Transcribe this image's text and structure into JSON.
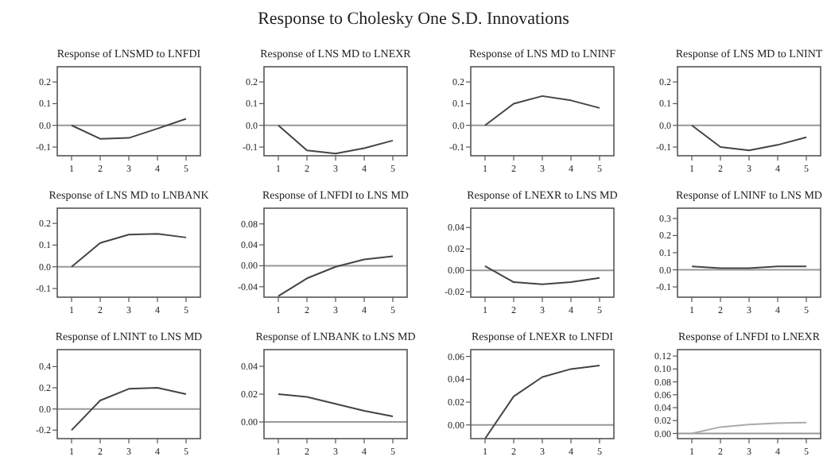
{
  "chart_data": [
    {
      "type": "line",
      "title": "Response of LNSMD to LNFDI",
      "annotations": [
        "Response to Cholesky One S.D. Innovations"
      ],
      "x": [
        1,
        2,
        3,
        4,
        5
      ],
      "xlim": [
        0.5,
        5.5
      ],
      "xticks": [
        1,
        2,
        3,
        4,
        5
      ],
      "ylim": [
        -0.14,
        0.27
      ],
      "yticks": [
        {
          "value": -0.1,
          "label": "-0.1"
        },
        {
          "value": 0,
          "label": "0.0"
        },
        {
          "value": 0.1,
          "label": "0.1"
        },
        {
          "value": 0.2,
          "label": "0.2"
        }
      ],
      "ref_lines": [
        {
          "axis": "y",
          "value": 0,
          "color": "#999999"
        }
      ],
      "series": [
        {
          "color": "#444444",
          "values": [
            0,
            -0.062,
            -0.058,
            -0.015,
            0.03
          ]
        }
      ]
    },
    {
      "type": "line",
      "title": "Response of LNS MD to LNEXR",
      "x": [
        1,
        2,
        3,
        4,
        5
      ],
      "xlim": [
        0.5,
        5.5
      ],
      "xticks": [
        1,
        2,
        3,
        4,
        5
      ],
      "ylim": [
        -0.14,
        0.27
      ],
      "yticks": [
        {
          "value": -0.1,
          "label": "-0.1"
        },
        {
          "value": 0,
          "label": "0.0"
        },
        {
          "value": 0.1,
          "label": "0.1"
        },
        {
          "value": 0.2,
          "label": "0.2"
        }
      ],
      "ref_lines": [
        {
          "axis": "y",
          "value": 0,
          "color": "#999999"
        }
      ],
      "series": [
        {
          "color": "#444444",
          "values": [
            0,
            -0.115,
            -0.13,
            -0.105,
            -0.07
          ]
        }
      ]
    },
    {
      "type": "line",
      "title": "Response of LNS MD  to LNINF",
      "x": [
        1,
        2,
        3,
        4,
        5
      ],
      "xlim": [
        0.5,
        5.5
      ],
      "xticks": [
        1,
        2,
        3,
        4,
        5
      ],
      "ylim": [
        -0.14,
        0.27
      ],
      "yticks": [
        {
          "value": -0.1,
          "label": "-0.1"
        },
        {
          "value": 0,
          "label": "0.0"
        },
        {
          "value": 0.1,
          "label": "0.1"
        },
        {
          "value": 0.2,
          "label": "0.2"
        }
      ],
      "ref_lines": [
        {
          "axis": "y",
          "value": 0,
          "color": "#999999"
        }
      ],
      "series": [
        {
          "color": "#444444",
          "values": [
            0,
            0.1,
            0.135,
            0.115,
            0.08
          ]
        }
      ]
    },
    {
      "type": "line",
      "title": "Response of LNS MD to LNINT",
      "x": [
        1,
        2,
        3,
        4,
        5
      ],
      "xlim": [
        0.5,
        5.5
      ],
      "xticks": [
        1,
        2,
        3,
        4,
        5
      ],
      "ylim": [
        -0.14,
        0.27
      ],
      "yticks": [
        {
          "value": -0.1,
          "label": "-0.1"
        },
        {
          "value": 0,
          "label": "0.0"
        },
        {
          "value": 0.1,
          "label": "0.1"
        },
        {
          "value": 0.2,
          "label": "0.2"
        }
      ],
      "ref_lines": [
        {
          "axis": "y",
          "value": 0,
          "color": "#999999"
        }
      ],
      "series": [
        {
          "color": "#444444",
          "values": [
            0,
            -0.1,
            -0.115,
            -0.09,
            -0.055
          ]
        }
      ]
    },
    {
      "type": "line",
      "title": "Response of LNS MD to LNBANK",
      "x": [
        1,
        2,
        3,
        4,
        5
      ],
      "xlim": [
        0.5,
        5.5
      ],
      "xticks": [
        1,
        2,
        3,
        4,
        5
      ],
      "ylim": [
        -0.14,
        0.27
      ],
      "yticks": [
        {
          "value": -0.1,
          "label": "-0.1"
        },
        {
          "value": 0,
          "label": "0.0"
        },
        {
          "value": 0.1,
          "label": "0.1"
        },
        {
          "value": 0.2,
          "label": "0.2"
        }
      ],
      "ref_lines": [
        {
          "axis": "y",
          "value": 0,
          "color": "#999999"
        }
      ],
      "series": [
        {
          "color": "#444444",
          "values": [
            0,
            0.11,
            0.148,
            0.152,
            0.135
          ]
        }
      ]
    },
    {
      "type": "line",
      "title": "Response of LNFDI to LNS MD",
      "x": [
        1,
        2,
        3,
        4,
        5
      ],
      "xlim": [
        0.5,
        5.5
      ],
      "xticks": [
        1,
        2,
        3,
        4,
        5
      ],
      "ylim": [
        -0.06,
        0.11
      ],
      "yticks": [
        {
          "value": -0.04,
          "label": "-0.04"
        },
        {
          "value": 0,
          "label": "0.00"
        },
        {
          "value": 0.04,
          "label": "0.04"
        },
        {
          "value": 0.08,
          "label": "0.08"
        }
      ],
      "ref_lines": [
        {
          "axis": "y",
          "value": 0,
          "color": "#999999"
        }
      ],
      "series": [
        {
          "color": "#444444",
          "values": [
            -0.058,
            -0.024,
            -0.002,
            0.012,
            0.018
          ]
        }
      ]
    },
    {
      "type": "line",
      "title": "Response of LNEXR to LNS MD",
      "x": [
        1,
        2,
        3,
        4,
        5
      ],
      "xlim": [
        0.5,
        5.5
      ],
      "xticks": [
        1,
        2,
        3,
        4,
        5
      ],
      "ylim": [
        -0.025,
        0.058
      ],
      "yticks": [
        {
          "value": -0.02,
          "label": "-0.02"
        },
        {
          "value": 0,
          "label": "0.00"
        },
        {
          "value": 0.02,
          "label": "0.02"
        },
        {
          "value": 0.04,
          "label": "0.04"
        }
      ],
      "ref_lines": [
        {
          "axis": "y",
          "value": 0,
          "color": "#999999"
        }
      ],
      "series": [
        {
          "color": "#444444",
          "values": [
            0.004,
            -0.011,
            -0.013,
            -0.011,
            -0.007
          ]
        }
      ]
    },
    {
      "type": "line",
      "title": "Response of LNINF to LNS MD",
      "x": [
        1,
        2,
        3,
        4,
        5
      ],
      "xlim": [
        0.5,
        5.5
      ],
      "xticks": [
        1,
        2,
        3,
        4,
        5
      ],
      "ylim": [
        -0.16,
        0.36
      ],
      "yticks": [
        {
          "value": -0.1,
          "label": "-0.1"
        },
        {
          "value": 0,
          "label": "0.0"
        },
        {
          "value": 0.1,
          "label": "0.1"
        },
        {
          "value": 0.2,
          "label": "0.2"
        },
        {
          "value": 0.3,
          "label": "0.3"
        }
      ],
      "ref_lines": [
        {
          "axis": "y",
          "value": 0,
          "color": "#999999"
        }
      ],
      "series": [
        {
          "color": "#444444",
          "values": [
            0.02,
            0.01,
            0.01,
            0.02,
            0.02
          ]
        }
      ]
    },
    {
      "type": "line",
      "title": "Response of LNINT to LNS MD",
      "x": [
        1,
        2,
        3,
        4,
        5
      ],
      "xlim": [
        0.5,
        5.5
      ],
      "xticks": [
        1,
        2,
        3,
        4,
        5
      ],
      "ylim": [
        -0.28,
        0.56
      ],
      "yticks": [
        {
          "value": -0.2,
          "label": "-0.2"
        },
        {
          "value": 0,
          "label": "0.0"
        },
        {
          "value": 0.2,
          "label": "0.2"
        },
        {
          "value": 0.4,
          "label": "0.4"
        }
      ],
      "ref_lines": [
        {
          "axis": "y",
          "value": 0,
          "color": "#999999"
        }
      ],
      "series": [
        {
          "color": "#444444",
          "values": [
            -0.2,
            0.08,
            0.19,
            0.2,
            0.14
          ]
        }
      ]
    },
    {
      "type": "line",
      "title": "Response of LNBANK to LNS MD",
      "x": [
        1,
        2,
        3,
        4,
        5
      ],
      "xlim": [
        0.5,
        5.5
      ],
      "xticks": [
        1,
        2,
        3,
        4,
        5
      ],
      "ylim": [
        -0.012,
        0.052
      ],
      "yticks": [
        {
          "value": 0,
          "label": "0.00"
        },
        {
          "value": 0.02,
          "label": "0.02"
        },
        {
          "value": 0.04,
          "label": "0.04"
        }
      ],
      "ref_lines": [
        {
          "axis": "y",
          "value": 0,
          "color": "#999999"
        }
      ],
      "series": [
        {
          "color": "#444444",
          "values": [
            0.02,
            0.018,
            0.013,
            0.008,
            0.004
          ]
        }
      ]
    },
    {
      "type": "line",
      "title": "Response of LNEXR to LNFDI",
      "x": [
        1,
        2,
        3,
        4,
        5
      ],
      "xlim": [
        0.5,
        5.5
      ],
      "xticks": [
        1,
        2,
        3,
        4,
        5
      ],
      "ylim": [
        -0.012,
        0.066
      ],
      "yticks": [
        {
          "value": 0,
          "label": "0.00"
        },
        {
          "value": 0.02,
          "label": "0.02"
        },
        {
          "value": 0.04,
          "label": "0.04"
        },
        {
          "value": 0.06,
          "label": "0.06"
        }
      ],
      "ref_lines": [
        {
          "axis": "y",
          "value": 0,
          "color": "#999999"
        }
      ],
      "series": [
        {
          "color": "#444444",
          "values": [
            -0.012,
            0.025,
            0.042,
            0.049,
            0.052
          ]
        }
      ]
    },
    {
      "type": "line",
      "title": "Response of LNFDI to LNEXR",
      "x": [
        1,
        2,
        3,
        4,
        5
      ],
      "xlim": [
        0.5,
        5.5
      ],
      "xticks": [
        1,
        2,
        3,
        4,
        5
      ],
      "ylim": [
        -0.008,
        0.13
      ],
      "yticks": [
        {
          "value": 0,
          "label": "0.00"
        },
        {
          "value": 0.02,
          "label": "0.02"
        },
        {
          "value": 0.04,
          "label": "0.04"
        },
        {
          "value": 0.06,
          "label": "0.06"
        },
        {
          "value": 0.08,
          "label": "0.08"
        },
        {
          "value": 0.1,
          "label": "0.10"
        },
        {
          "value": 0.12,
          "label": "0.12"
        }
      ],
      "ref_lines": [
        {
          "axis": "y",
          "value": 0,
          "color": "#999999"
        }
      ],
      "series": [
        {
          "color": "#aaaaaa",
          "values": [
            0,
            0.01,
            0.014,
            0.016,
            0.017
          ]
        }
      ]
    }
  ]
}
